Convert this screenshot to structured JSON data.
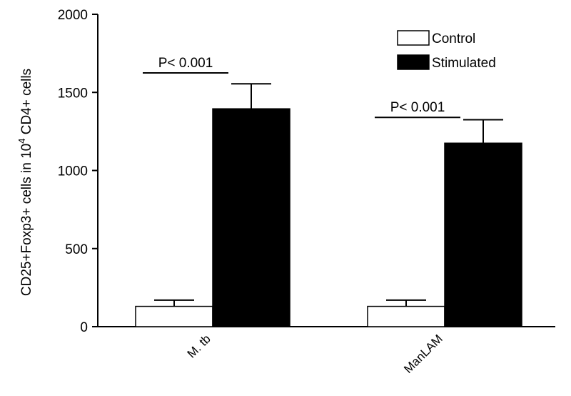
{
  "chart_data": {
    "type": "bar",
    "categories": [
      "M. tb",
      "ManLAM"
    ],
    "series": [
      {
        "name": "Control",
        "values": [
          130,
          130
        ],
        "errors": [
          40,
          40
        ],
        "color": "#ffffff"
      },
      {
        "name": "Stimulated",
        "values": [
          1395,
          1175
        ],
        "errors": [
          160,
          150
        ],
        "color": "#000000"
      }
    ],
    "ylabel": {
      "prefix": "CD25+Foxp3+ cells in 10",
      "superscript": "4",
      "suffix": " CD4+ cells"
    },
    "xlabel": "",
    "ylim": [
      0,
      2000
    ],
    "yticks": [
      "0",
      "500",
      "1000",
      "1500",
      "2000"
    ],
    "legend_position": "top-right",
    "annotations": [
      {
        "text": "P< 0.001",
        "category": "M. tb",
        "y": 1625
      },
      {
        "text": "P< 0.001",
        "category": "ManLAM",
        "y": 1340
      }
    ],
    "grid": false
  }
}
